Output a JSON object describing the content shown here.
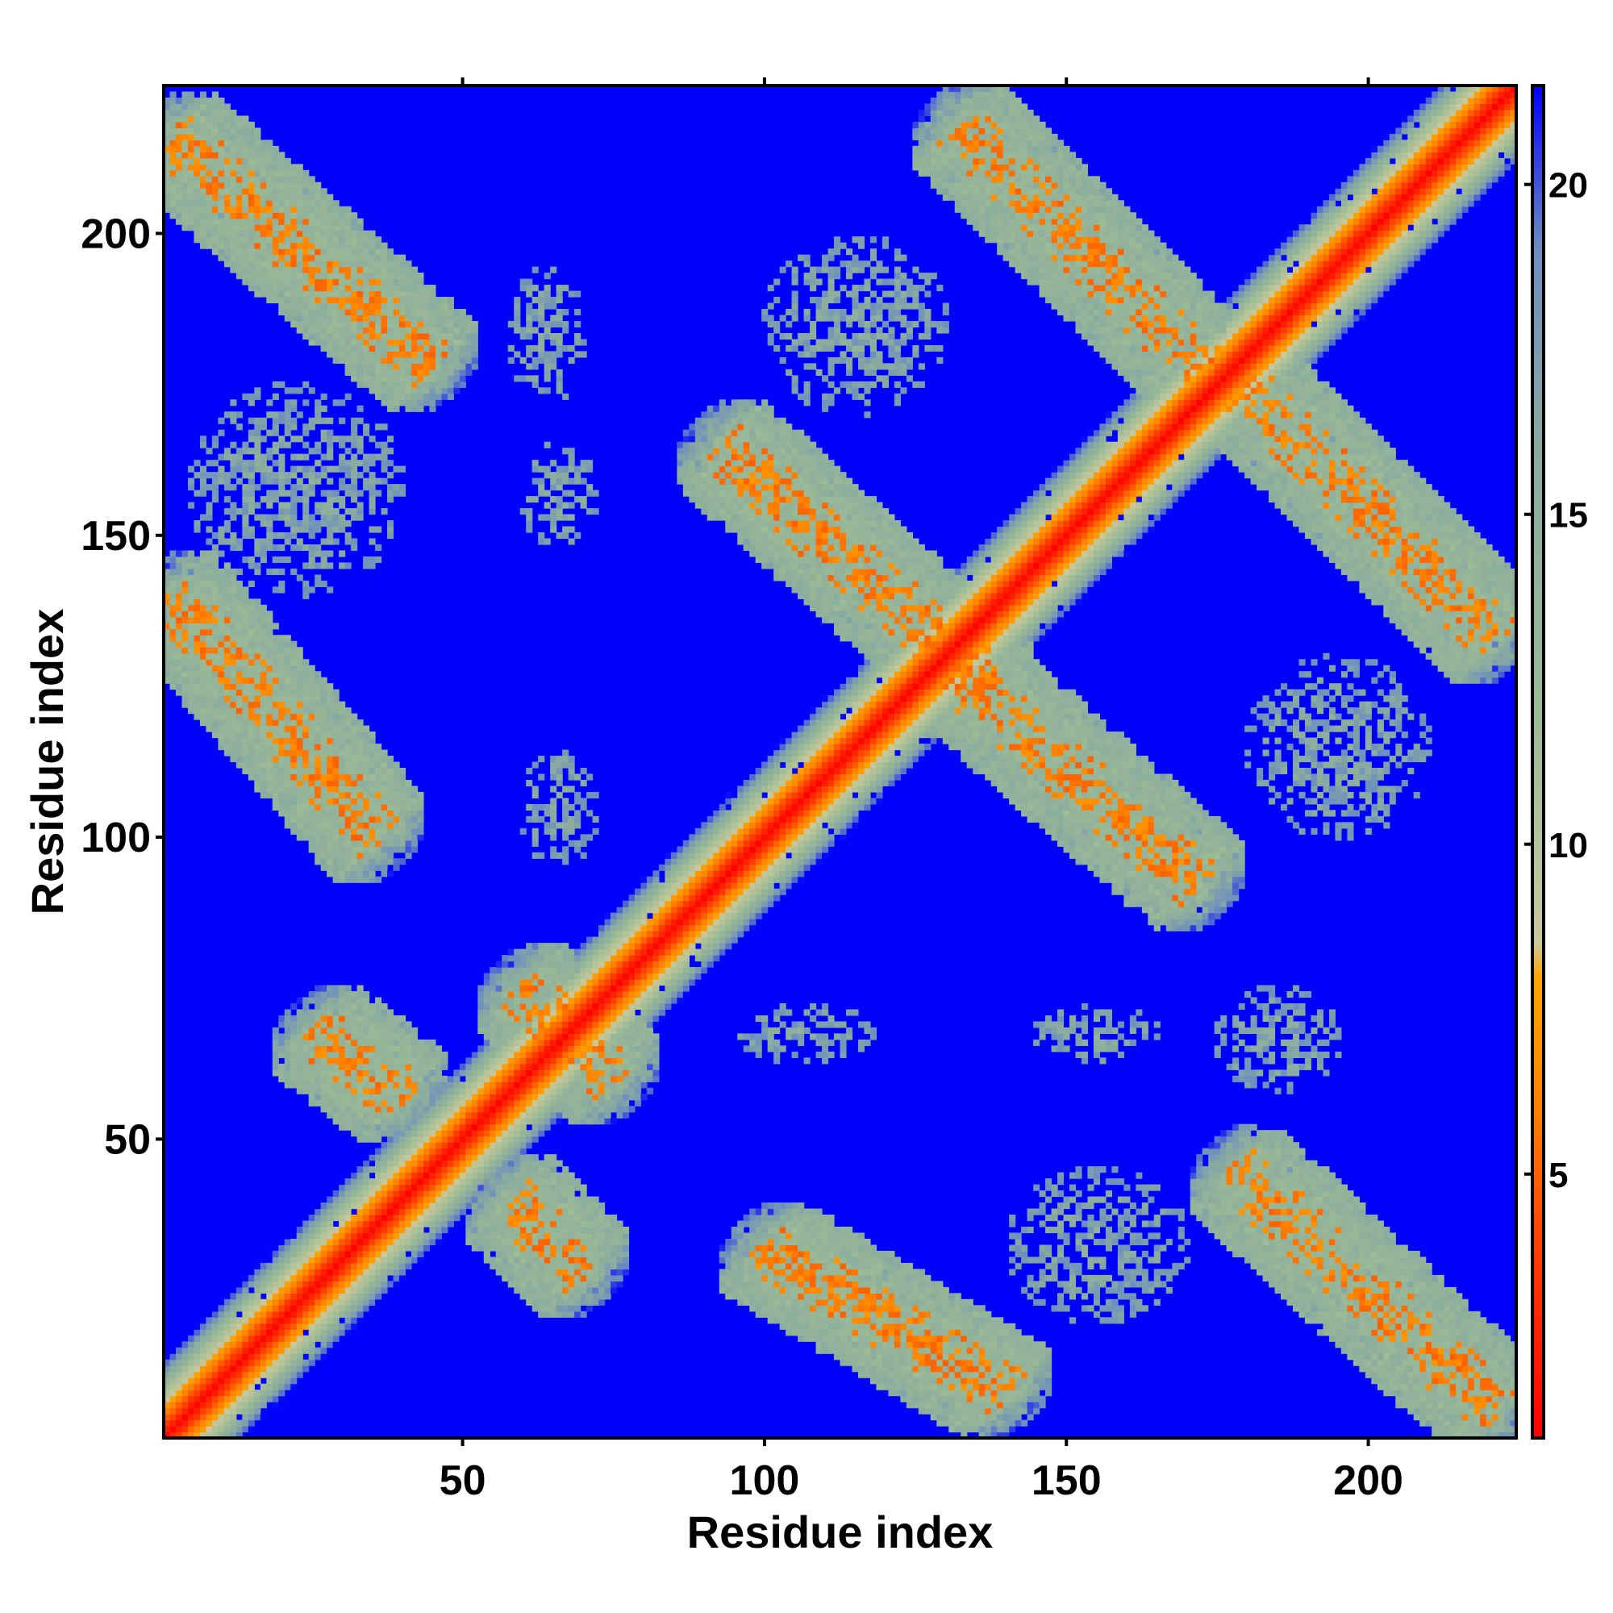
{
  "chart_data": {
    "type": "heatmap",
    "title": "",
    "xlabel": "Residue index",
    "ylabel": "Residue index",
    "xlim": [
      1,
      224
    ],
    "ylim": [
      1,
      224
    ],
    "x_ticks": [
      50,
      100,
      150,
      200
    ],
    "y_ticks": [
      50,
      100,
      150,
      200
    ],
    "colorbar": {
      "range": [
        1,
        21.5
      ],
      "ticks": [
        5,
        10,
        15,
        20
      ],
      "stops": [
        {
          "value": 1,
          "color": "#ff0000"
        },
        {
          "value": 4,
          "color": "#ff4000"
        },
        {
          "value": 6,
          "color": "#ff8000"
        },
        {
          "value": 8,
          "color": "#ffa500"
        },
        {
          "value": 8.5,
          "color": "#c8c89a"
        },
        {
          "value": 12,
          "color": "#9aba96"
        },
        {
          "value": 16,
          "color": "#8aaaa0"
        },
        {
          "value": 19,
          "color": "#6c8fbf"
        },
        {
          "value": 21.5,
          "color": "#0000ff"
        }
      ]
    },
    "background_value": 21.5,
    "features": [
      {
        "kind": "diagonal",
        "from": 1,
        "to": 224
      },
      {
        "kind": "antiparallel_band",
        "x": [
          2,
          45
        ],
        "y": [
          216,
          178
        ]
      },
      {
        "kind": "antiparallel_band",
        "x": [
          2,
          36
        ],
        "y": [
          140,
          100
        ]
      },
      {
        "kind": "antiparallel_band",
        "x": [
          93,
          137
        ],
        "y": [
          165,
          125
        ]
      },
      {
        "kind": "antiparallel_band",
        "x": [
          132,
          172
        ],
        "y": [
          127,
          92
        ]
      },
      {
        "kind": "antiparallel_band",
        "x": [
          132,
          172
        ],
        "y": [
          218,
          178
        ]
      },
      {
        "kind": "antiparallel_band",
        "x": [
          178,
          221
        ],
        "y": [
          176,
          133
        ]
      },
      {
        "kind": "antiparallel_band",
        "x": [
          100,
          140
        ],
        "y": [
          32,
          8
        ]
      },
      {
        "kind": "antiparallel_band",
        "x": [
          178,
          221
        ],
        "y": [
          45,
          5
        ]
      },
      {
        "kind": "antiparallel_band",
        "x": [
          26,
          40
        ],
        "y": [
          68,
          57
        ]
      },
      {
        "kind": "antiparallel_band",
        "x": [
          60,
          75
        ],
        "y": [
          75,
          60
        ]
      },
      {
        "kind": "antiparallel_band",
        "x": [
          58,
          70
        ],
        "y": [
          40,
          28
        ]
      },
      {
        "kind": "diffuse_patch",
        "x": [
          58,
          70
        ],
        "y": [
          195,
          172
        ]
      },
      {
        "kind": "diffuse_patch",
        "x": [
          60,
          72
        ],
        "y": [
          165,
          148
        ]
      },
      {
        "kind": "diffuse_patch",
        "x": [
          60,
          72
        ],
        "y": [
          115,
          95
        ]
      },
      {
        "kind": "diffuse_patch",
        "x": [
          95,
          118
        ],
        "y": [
          72,
          63
        ]
      },
      {
        "kind": "diffuse_patch",
        "x": [
          145,
          165
        ],
        "y": [
          72,
          63
        ]
      },
      {
        "kind": "diffuse_patch",
        "x": [
          175,
          195
        ],
        "y": [
          75,
          58
        ]
      },
      {
        "kind": "diffuse_patch",
        "x": [
          100,
          130
        ],
        "y": [
          200,
          170
        ]
      },
      {
        "kind": "diffuse_patch",
        "x": [
          180,
          210
        ],
        "y": [
          130,
          100
        ]
      },
      {
        "kind": "diffuse_patch",
        "x": [
          5,
          40
        ],
        "y": [
          175,
          140
        ]
      },
      {
        "kind": "diffuse_patch",
        "x": [
          140,
          170
        ],
        "y": [
          45,
          20
        ]
      }
    ]
  }
}
